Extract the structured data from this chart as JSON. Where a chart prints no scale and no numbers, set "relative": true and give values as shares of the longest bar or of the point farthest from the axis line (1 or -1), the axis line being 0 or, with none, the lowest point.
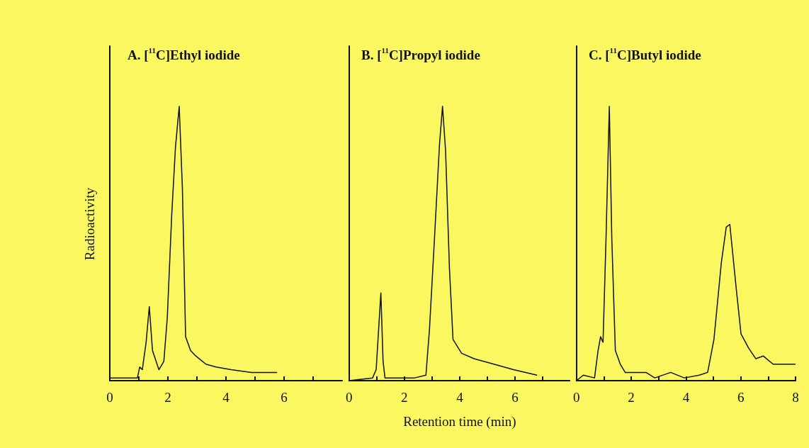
{
  "chart_data": [
    {
      "type": "line",
      "title": "A. [$^{11}$C]Ethyl iodide",
      "ylabel": "Radioactivity",
      "relative": true,
      "tick_labels": "x",
      "color": "#111111",
      "xlim": [
        0,
        8
      ],
      "xticks": [
        0,
        {
          "value": 1,
          "label": null
        },
        2,
        {
          "value": 3,
          "label": null
        },
        4,
        {
          "value": 5,
          "label": null
        },
        6,
        {
          "value": 7,
          "label": null
        }
      ],
      "x": [
        0,
        0.35,
        0.95,
        1.03,
        1.12,
        1.25,
        1.36,
        1.47,
        1.69,
        1.86,
        1.98,
        2.13,
        2.26,
        2.39,
        2.5,
        2.61,
        2.78,
        2.96,
        3.31,
        3.66,
        4.18,
        4.88,
        5.76
      ],
      "values": [
        0.01,
        0.01,
        0.01,
        0.05,
        0.04,
        0.14,
        0.27,
        0.11,
        0.04,
        0.07,
        0.23,
        0.6,
        0.85,
        1,
        0.7,
        0.16,
        0.11,
        0.09,
        0.06,
        0.05,
        0.04,
        0.03,
        0.03
      ]
    },
    {
      "type": "line",
      "title": "B. [$^{11}$C]Propyl iodide",
      "xlabel": "Retention time (min)",
      "relative": true,
      "tick_labels": "x",
      "color": "#111111",
      "xlim": [
        0,
        8
      ],
      "xticks": [
        0,
        {
          "value": 1,
          "label": null
        },
        2,
        {
          "value": 3,
          "label": null
        },
        4,
        {
          "value": 5,
          "label": null
        },
        6,
        {
          "value": 7,
          "label": null
        }
      ],
      "x": [
        0,
        0.85,
        0.98,
        1.15,
        1.23,
        1.3,
        2.37,
        2.78,
        2.91,
        3.09,
        3.27,
        3.38,
        3.49,
        3.63,
        3.76,
        4.07,
        4.52,
        5.24,
        5.95,
        6.8
      ],
      "values": [
        0,
        0.01,
        0.04,
        0.32,
        0.07,
        0.01,
        0.01,
        0.02,
        0.19,
        0.52,
        0.86,
        1,
        0.84,
        0.41,
        0.15,
        0.1,
        0.08,
        0.06,
        0.04,
        0.02
      ]
    },
    {
      "type": "line",
      "title": "C. [$^{11}$C]Butyl iodide",
      "relative": true,
      "tick_labels": "x",
      "color": "#111111",
      "xlim": [
        0,
        8
      ],
      "xticks": [
        0,
        {
          "value": 1,
          "label": null
        },
        2,
        {
          "value": 3,
          "label": null
        },
        4,
        {
          "value": 5,
          "label": null
        },
        6,
        {
          "value": 7,
          "label": null
        },
        8
      ],
      "x": [
        0,
        0.25,
        0.66,
        0.79,
        0.88,
        0.97,
        1.08,
        1.2,
        1.29,
        1.42,
        1.6,
        1.78,
        2.05,
        2.54,
        2.86,
        3.44,
        3.94,
        4.48,
        4.79,
        5.02,
        5.29,
        5.47,
        5.6,
        5.83,
        6.01,
        6.28,
        6.55,
        6.82,
        7.18,
        7.54,
        8
      ],
      "values": [
        0,
        0.02,
        0.01,
        0.11,
        0.16,
        0.14,
        0.52,
        1,
        0.52,
        0.11,
        0.06,
        0.03,
        0.03,
        0.03,
        0.01,
        0.03,
        0.01,
        0.02,
        0.03,
        0.15,
        0.43,
        0.56,
        0.57,
        0.34,
        0.17,
        0.12,
        0.08,
        0.09,
        0.06,
        0.06,
        0.06
      ]
    }
  ]
}
